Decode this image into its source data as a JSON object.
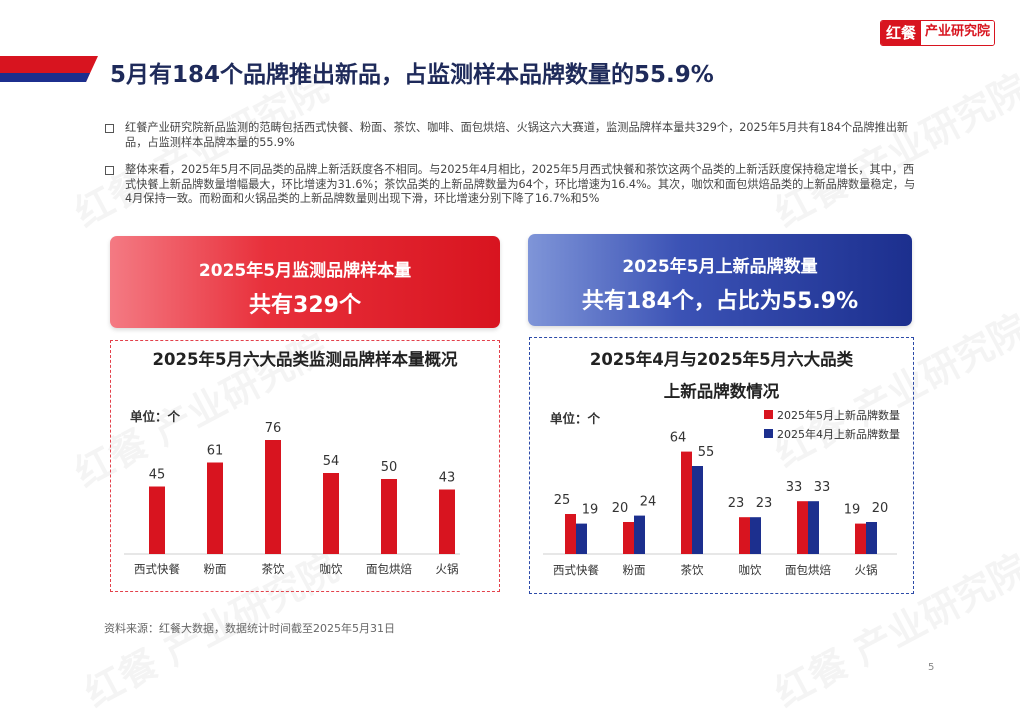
{
  "logo": {
    "brand": "红餐",
    "sub": "产业研究院"
  },
  "page_title": "5月有184个品牌推出新品，占监测样本品牌数量的55.9%",
  "bullets": [
    "红餐产业研究院新品监测的范畴包括西式快餐、粉面、茶饮、咖啡、面包烘焙、火锅这六大赛道，监测品牌样本量共329个，2025年5月共有184个品牌推出新品，占监测样本品牌本量的55.9%",
    "整体来看，2025年5月不同品类的品牌上新活跃度各不相同。与2025年4月相比，2025年5月西式快餐和茶饮这两个品类的上新活跃度保持稳定增长，其中，西式快餐上新品牌数量增幅最大，环比增速为31.6%；茶饮品类的上新品牌数量为64个，环比增速为16.4%。其次，咖饮和面包烘焙品类的上新品牌数量稳定，与4月保持一致。而粉面和火锅品类的上新品牌数量则出现下滑，环比增速分别下降了16.7%和5%"
  ],
  "banner_left": {
    "line1": "2025年5月监测品牌样本量",
    "line2": "共有329个"
  },
  "banner_right": {
    "line1": "2025年5月上新品牌数量",
    "line2": "共有184个，占比为55.9%"
  },
  "chart_left": {
    "title": "2025年5月六大品类监测品牌样本量概况",
    "unit": "单位：个"
  },
  "chart_right": {
    "title_line1": "2025年4月与2025年5月六大品类",
    "title_line2": "上新品牌数情况",
    "unit": "单位：个"
  },
  "colors": {
    "red": "#d8141f",
    "blue": "#1c2f8e"
  },
  "chart_data": [
    {
      "type": "bar",
      "title": "2025年5月六大品类监测品牌样本量概况",
      "ylabel": "单位：个",
      "categories": [
        "西式快餐",
        "粉面",
        "茶饮",
        "咖饮",
        "面包烘焙",
        "火锅"
      ],
      "values": [
        45,
        61,
        76,
        54,
        50,
        43
      ],
      "ylim": [
        0,
        90
      ],
      "grid": false
    },
    {
      "type": "bar",
      "title": "2025年4月与2025年5月六大品类上新品牌数情况",
      "ylabel": "单位：个",
      "categories": [
        "西式快餐",
        "粉面",
        "茶饮",
        "咖饮",
        "面包烘焙",
        "火锅"
      ],
      "series": [
        {
          "name": "2025年5月上新品牌数量",
          "values": [
            25,
            20,
            64,
            23,
            33,
            19
          ]
        },
        {
          "name": "2025年4月上新品牌数量",
          "values": [
            19,
            24,
            55,
            23,
            33,
            20
          ]
        }
      ],
      "ylim": [
        0,
        75
      ],
      "legend": "top-right",
      "grid": false
    }
  ],
  "source": "资料来源：红餐大数据，数据统计时间截至2025年5月31日",
  "page_number": "5"
}
